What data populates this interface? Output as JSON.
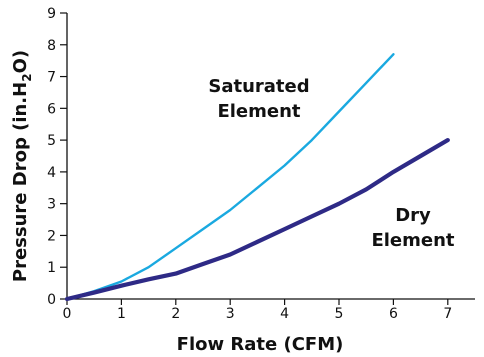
{
  "chart_data": {
    "type": "line",
    "xlabel": "Flow Rate (CFM)",
    "ylabel": {
      "main": "Pressure Drop (in.H",
      "sub": "2",
      "end": "O)"
    },
    "xlim": [
      0,
      7.5
    ],
    "ylim": [
      0,
      9
    ],
    "x_ticks": [
      0,
      1,
      2,
      3,
      4,
      5,
      6,
      7
    ],
    "y_ticks": [
      0,
      1,
      2,
      3,
      4,
      5,
      6,
      7,
      8,
      9
    ],
    "grid": false,
    "series": [
      {
        "name": "Saturated Element",
        "label_lines": [
          "Saturated",
          "Element"
        ],
        "color": "#1aa9e0",
        "stroke_style": "thin",
        "x": [
          0,
          0.5,
          1.0,
          1.5,
          2.0,
          2.5,
          3.0,
          3.5,
          4.0,
          4.5,
          5.0,
          5.5,
          6.0
        ],
        "y": [
          0,
          0.25,
          0.55,
          1.0,
          1.6,
          2.2,
          2.8,
          3.5,
          4.2,
          5.0,
          5.9,
          6.8,
          7.7
        ]
      },
      {
        "name": "Dry Element",
        "label_lines": [
          "Dry",
          "Element"
        ],
        "color": "#2e2a86",
        "stroke_style": "thick",
        "x": [
          0,
          0.5,
          1.0,
          1.5,
          2.0,
          2.5,
          3.0,
          3.5,
          4.0,
          4.5,
          5.0,
          5.5,
          6.0,
          6.5,
          7.0
        ],
        "y": [
          0,
          0.2,
          0.42,
          0.62,
          0.8,
          1.1,
          1.4,
          1.8,
          2.2,
          2.6,
          3.0,
          3.45,
          4.0,
          4.5,
          5.0
        ]
      }
    ]
  }
}
